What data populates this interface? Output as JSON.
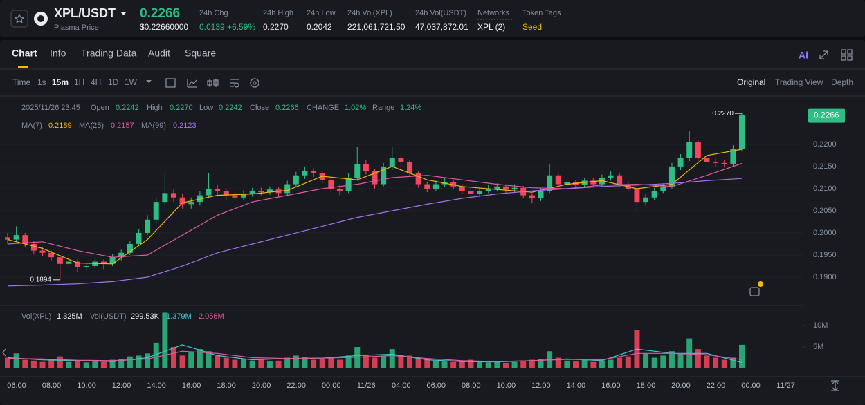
{
  "header": {
    "symbol": "XPL/USDT",
    "price": "0.2266",
    "price_usd": "$0.22660000",
    "subtitle": "Plasma Price",
    "stats": [
      {
        "label": "24h Chg",
        "value": "0.0139 +6.59%"
      },
      {
        "label": "24h High",
        "value": "0.2270"
      },
      {
        "label": "24h Low",
        "value": "0.2042"
      },
      {
        "label": "24h Vol(XPL)",
        "value": "221,061,721.50"
      },
      {
        "label": "24h Vol(USDT)",
        "value": "47,037,872.01"
      },
      {
        "label": "Networks",
        "value": "XPL (2)"
      },
      {
        "label": "Token Tags",
        "value": "Seed"
      }
    ]
  },
  "tabs": [
    "Chart",
    "Info",
    "Trading Data",
    "Audit",
    "Square"
  ],
  "ai": "Ai",
  "toolbar": {
    "intervals": [
      "Time",
      "1s",
      "15m",
      "1H",
      "4H",
      "1D",
      "1W"
    ],
    "views": [
      "Original",
      "Trading View",
      "Depth"
    ]
  },
  "chart_data": {
    "type": "candlestick",
    "info": {
      "date": "2025/11/26 23:45",
      "fields": [
        {
          "label": "Open",
          "value": "0.2242"
        },
        {
          "label": "High",
          "value": "0.2270"
        },
        {
          "label": "Low",
          "value": "0.2242"
        },
        {
          "label": "Close",
          "value": "0.2266"
        },
        {
          "label": "CHANGE",
          "value": "1.02%"
        },
        {
          "label": "Range",
          "value": "1.24%"
        }
      ]
    },
    "up_color": "#2ebd85",
    "down_color": "#f6465d",
    "ylim": [
      0.18375,
      0.2303
    ],
    "yticks": [
      {
        "value": 0.19,
        "label": "0.1900"
      },
      {
        "value": 0.195,
        "label": "0.1950"
      },
      {
        "value": 0.2,
        "label": "0.2000"
      },
      {
        "value": 0.205,
        "label": "0.2050"
      },
      {
        "value": 0.21,
        "label": "0.2100"
      },
      {
        "value": 0.215,
        "label": "0.2150"
      },
      {
        "value": 0.22,
        "label": "0.2200"
      }
    ],
    "grid": true,
    "last_price": {
      "value": 0.2266,
      "label": "0.2266"
    },
    "high_marker": {
      "value": 0.227,
      "label": "0.2270"
    },
    "low_marker": {
      "value": 0.1894,
      "label": "0.1894"
    },
    "candles": {
      "open": [
        0.199,
        0.1985,
        0.1995,
        0.1975,
        0.196,
        0.1955,
        0.1945,
        0.193,
        0.1935,
        0.1922,
        0.1925,
        0.1935,
        0.193,
        0.1945,
        0.1955,
        0.1975,
        0.2,
        0.203,
        0.207,
        0.209,
        0.208,
        0.2065,
        0.207,
        0.2085,
        0.21,
        0.2095,
        0.2085,
        0.208,
        0.2088,
        0.2095,
        0.2092,
        0.2098,
        0.209,
        0.211,
        0.213,
        0.214,
        0.2135,
        0.212,
        0.21,
        0.2095,
        0.2125,
        0.2155,
        0.214,
        0.211,
        0.215,
        0.217,
        0.216,
        0.2135,
        0.211,
        0.21,
        0.211,
        0.2115,
        0.2105,
        0.2095,
        0.2088,
        0.2095,
        0.21,
        0.2105,
        0.2098,
        0.2102,
        0.2085,
        0.2078,
        0.2095,
        0.213,
        0.211,
        0.2115,
        0.2108,
        0.2118,
        0.211,
        0.2125,
        0.213,
        0.211,
        0.21,
        0.207,
        0.208,
        0.2095,
        0.2105,
        0.215,
        0.217,
        0.2205,
        0.217,
        0.216,
        0.2158,
        0.2155,
        0.219
      ],
      "high": [
        0.2,
        0.2015,
        0.2,
        0.1982,
        0.1968,
        0.196,
        0.195,
        0.1942,
        0.194,
        0.1932,
        0.1942,
        0.194,
        0.1952,
        0.1962,
        0.1982,
        0.2008,
        0.204,
        0.208,
        0.2135,
        0.2098,
        0.2088,
        0.208,
        0.2095,
        0.2135,
        0.2108,
        0.21,
        0.2092,
        0.2096,
        0.2102,
        0.2102,
        0.2105,
        0.2104,
        0.2118,
        0.2138,
        0.215,
        0.2146,
        0.214,
        0.2126,
        0.2108,
        0.2135,
        0.2195,
        0.2165,
        0.2145,
        0.2158,
        0.2195,
        0.2178,
        0.2165,
        0.214,
        0.2116,
        0.2118,
        0.2125,
        0.212,
        0.211,
        0.21,
        0.2102,
        0.2108,
        0.2112,
        0.211,
        0.211,
        0.2106,
        0.209,
        0.2102,
        0.2155,
        0.2136,
        0.2122,
        0.212,
        0.2125,
        0.2124,
        0.2132,
        0.214,
        0.2135,
        0.2116,
        0.2106,
        0.2088,
        0.2102,
        0.2112,
        0.2158,
        0.2178,
        0.223,
        0.221,
        0.2178,
        0.2168,
        0.2165,
        0.2198,
        0.227
      ],
      "low": [
        0.1975,
        0.198,
        0.1968,
        0.1952,
        0.1948,
        0.1938,
        0.1894,
        0.1922,
        0.1912,
        0.1915,
        0.192,
        0.1918,
        0.1925,
        0.1938,
        0.195,
        0.197,
        0.1995,
        0.2022,
        0.206,
        0.207,
        0.2055,
        0.2055,
        0.2062,
        0.2078,
        0.2085,
        0.2075,
        0.2072,
        0.2074,
        0.2082,
        0.2085,
        0.2086,
        0.2082,
        0.2085,
        0.2104,
        0.2122,
        0.2126,
        0.2112,
        0.2092,
        0.2085,
        0.209,
        0.2118,
        0.2132,
        0.21,
        0.2105,
        0.2142,
        0.2152,
        0.2128,
        0.2102,
        0.2092,
        0.2095,
        0.2104,
        0.2098,
        0.2088,
        0.2075,
        0.2082,
        0.209,
        0.2095,
        0.209,
        0.2092,
        0.2078,
        0.2068,
        0.2072,
        0.209,
        0.2104,
        0.2104,
        0.21,
        0.2102,
        0.2104,
        0.2105,
        0.2118,
        0.2104,
        0.2094,
        0.2045,
        0.2062,
        0.2074,
        0.209,
        0.21,
        0.2142,
        0.2162,
        0.2162,
        0.2152,
        0.215,
        0.2148,
        0.215,
        0.2186
      ],
      "close": [
        0.1985,
        0.1995,
        0.1975,
        0.196,
        0.1955,
        0.1945,
        0.193,
        0.1935,
        0.1922,
        0.1925,
        0.1935,
        0.193,
        0.1945,
        0.1955,
        0.1975,
        0.2,
        0.203,
        0.207,
        0.209,
        0.208,
        0.2065,
        0.207,
        0.2085,
        0.21,
        0.2095,
        0.2085,
        0.208,
        0.2088,
        0.2095,
        0.2092,
        0.2098,
        0.209,
        0.211,
        0.213,
        0.214,
        0.2135,
        0.212,
        0.21,
        0.2095,
        0.2125,
        0.2155,
        0.214,
        0.211,
        0.215,
        0.217,
        0.216,
        0.2135,
        0.211,
        0.21,
        0.211,
        0.2115,
        0.2105,
        0.2095,
        0.2088,
        0.2095,
        0.21,
        0.2105,
        0.2098,
        0.2102,
        0.2085,
        0.2078,
        0.2095,
        0.213,
        0.211,
        0.2115,
        0.2108,
        0.2118,
        0.211,
        0.2125,
        0.213,
        0.211,
        0.21,
        0.207,
        0.208,
        0.2095,
        0.2105,
        0.215,
        0.217,
        0.2205,
        0.217,
        0.216,
        0.2158,
        0.2155,
        0.219,
        0.2266
      ]
    },
    "ma": [
      {
        "name": "MA(7)",
        "color": "#f0b90b",
        "value_label": "0.2189",
        "values": [
          0.1985,
          0.1965,
          0.1932,
          0.193,
          0.1985,
          0.2068,
          0.2085,
          0.2088,
          0.2096,
          0.2128,
          0.212,
          0.215,
          0.212,
          0.2105,
          0.2098,
          0.2092,
          0.211,
          0.2118,
          0.21,
          0.211,
          0.2175,
          0.2189
        ]
      },
      {
        "name": "MA(25)",
        "color": "#e05aa0",
        "value_label": "0.2157",
        "values": [
          0.1975,
          0.198,
          0.196,
          0.1945,
          0.195,
          0.1995,
          0.204,
          0.207,
          0.2085,
          0.21,
          0.211,
          0.2125,
          0.213,
          0.212,
          0.211,
          0.2102,
          0.21,
          0.2108,
          0.211,
          0.2105,
          0.213,
          0.2157
        ]
      },
      {
        "name": "MA(99)",
        "color": "#a46ff0",
        "value_label": "0.2123",
        "values": [
          0.188,
          0.1882,
          0.1885,
          0.189,
          0.19,
          0.1925,
          0.1955,
          0.1975,
          0.1995,
          0.2015,
          0.2035,
          0.205,
          0.2065,
          0.2078,
          0.2088,
          0.2095,
          0.21,
          0.2105,
          0.2108,
          0.2112,
          0.2118,
          0.2123
        ]
      }
    ],
    "volume": {
      "legend": [
        {
          "label": "Vol(XPL)",
          "value": "1.325M"
        },
        {
          "label": "Vol(USDT)",
          "value": "299.53K"
        }
      ],
      "ylim": [
        0,
        14000000
      ],
      "yticks": [
        {
          "value": 5000000,
          "label": "5M"
        },
        {
          "value": 10000000,
          "label": "10M"
        }
      ],
      "values": [
        2500000,
        3500000,
        2000000,
        1800000,
        1500000,
        2200000,
        2800000,
        1500000,
        1800000,
        1400000,
        1600000,
        1500000,
        2000000,
        2200000,
        2800000,
        3000000,
        3500000,
        6000000,
        13000000,
        5000000,
        3000000,
        3800000,
        4500000,
        4000000,
        3000000,
        2500000,
        2000000,
        2200000,
        1800000,
        2000000,
        1600000,
        1800000,
        2500000,
        3000000,
        2600000,
        2000000,
        2200000,
        2500000,
        2000000,
        3000000,
        5000000,
        3200000,
        2500000,
        3000000,
        4500000,
        2800000,
        3000000,
        2500000,
        2000000,
        1800000,
        1600000,
        1500000,
        1800000,
        2000000,
        1500000,
        1400000,
        1600000,
        1300000,
        1500000,
        1800000,
        2000000,
        2200000,
        4000000,
        2500000,
        1800000,
        1600000,
        2000000,
        1500000,
        1800000,
        2000000,
        2500000,
        2800000,
        9000000,
        3500000,
        2500000,
        3000000,
        4000000,
        3500000,
        7000000,
        4500000,
        3000000,
        2500000,
        2000000,
        2500000,
        5500000
      ],
      "ma": [
        {
          "color": "#3dc9d6",
          "value_label": "1.379M",
          "values": [
            2500000,
            2000000,
            1800000,
            1600000,
            2500000,
            5500000,
            3000000,
            2000000,
            2300000,
            2400000,
            3000000,
            3300000,
            2000000,
            1600000,
            1500000,
            1800000,
            2200000,
            1800000,
            4500000,
            3500000,
            3500000,
            1379000
          ]
        },
        {
          "color": "#e05aa0",
          "value_label": "2.056M",
          "values": [
            2300000,
            2200000,
            1900000,
            1800000,
            2200000,
            4000000,
            3500000,
            2500000,
            2300000,
            2400000,
            2600000,
            3000000,
            2300000,
            1800000,
            1600000,
            1800000,
            2100000,
            2000000,
            3500000,
            3500000,
            3200000,
            2056000
          ]
        }
      ]
    },
    "time_labels": [
      "06:00",
      "08:00",
      "10:00",
      "12:00",
      "14:00",
      "16:00",
      "18:00",
      "20:00",
      "22:00",
      "00:00",
      "11/26",
      "04:00",
      "06:00",
      "08:00",
      "10:00",
      "12:00",
      "14:00",
      "16:00",
      "18:00",
      "20:00",
      "22:00",
      "00:00",
      "11/27"
    ]
  }
}
